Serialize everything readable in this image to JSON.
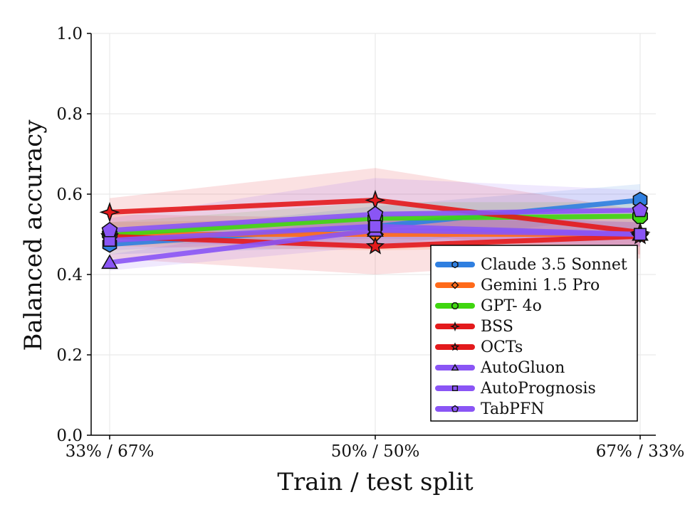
{
  "chart_data": {
    "type": "line",
    "title": "",
    "xlabel": "Train / test split",
    "ylabel": "Balanced accuracy",
    "categories": [
      "33% / 67%",
      "50% / 50%",
      "67% / 33%"
    ],
    "ylim": [
      0.0,
      1.0
    ],
    "yticks": [
      "0.0",
      "0.2",
      "0.4",
      "0.6",
      "0.8",
      "1.0"
    ],
    "grid": true,
    "legend_position": "lower-right",
    "series": [
      {
        "name": "Claude 3.5 Sonnet",
        "color": "#2f7fe0",
        "marker": "hexagon",
        "values": [
          0.475,
          0.52,
          0.585
        ],
        "band": [
          [
            0.45,
            0.5
          ],
          [
            0.47,
            0.57
          ],
          [
            0.55,
            0.625
          ]
        ]
      },
      {
        "name": "Gemini 1.5 Pro",
        "color": "#ff6a1a",
        "marker": "diamond",
        "values": [
          0.5,
          0.5,
          0.5
        ],
        "band": [
          [
            0.47,
            0.53
          ],
          [
            0.46,
            0.54
          ],
          [
            0.47,
            0.53
          ]
        ]
      },
      {
        "name": "GPT- 4o",
        "color": "#3fd60f",
        "marker": "octagon",
        "values": [
          0.5,
          0.54,
          0.545
        ],
        "band": [
          [
            0.47,
            0.53
          ],
          [
            0.5,
            0.58
          ],
          [
            0.51,
            0.58
          ]
        ]
      },
      {
        "name": "BSS",
        "color": "#e31a1c",
        "marker": "plus-star",
        "values": [
          0.555,
          0.585,
          0.505
        ],
        "band": [
          [
            0.52,
            0.59
          ],
          [
            0.505,
            0.665
          ],
          [
            0.45,
            0.56
          ]
        ]
      },
      {
        "name": "OCTs",
        "color": "#e31a1c",
        "marker": "star",
        "values": [
          0.495,
          0.47,
          0.495
        ],
        "band": [
          [
            0.44,
            0.55
          ],
          [
            0.4,
            0.54
          ],
          [
            0.44,
            0.55
          ]
        ]
      },
      {
        "name": "AutoGluon",
        "color": "#8a55f5",
        "marker": "triangle",
        "values": [
          0.43,
          0.51,
          0.5
        ],
        "band": [
          [
            0.41,
            0.45
          ],
          [
            0.47,
            0.55
          ],
          [
            0.47,
            0.53
          ]
        ]
      },
      {
        "name": "AutoPrognosis",
        "color": "#8a55f5",
        "marker": "square",
        "values": [
          0.485,
          0.52,
          0.5
        ],
        "band": [
          [
            0.46,
            0.51
          ],
          [
            0.49,
            0.55
          ],
          [
            0.47,
            0.53
          ]
        ]
      },
      {
        "name": "TabPFN",
        "color": "#8a55f5",
        "marker": "pentagon",
        "values": [
          0.51,
          0.55,
          0.56
        ],
        "band": [
          [
            0.48,
            0.54
          ],
          [
            0.47,
            0.64
          ],
          [
            0.5,
            0.61
          ]
        ]
      }
    ]
  }
}
